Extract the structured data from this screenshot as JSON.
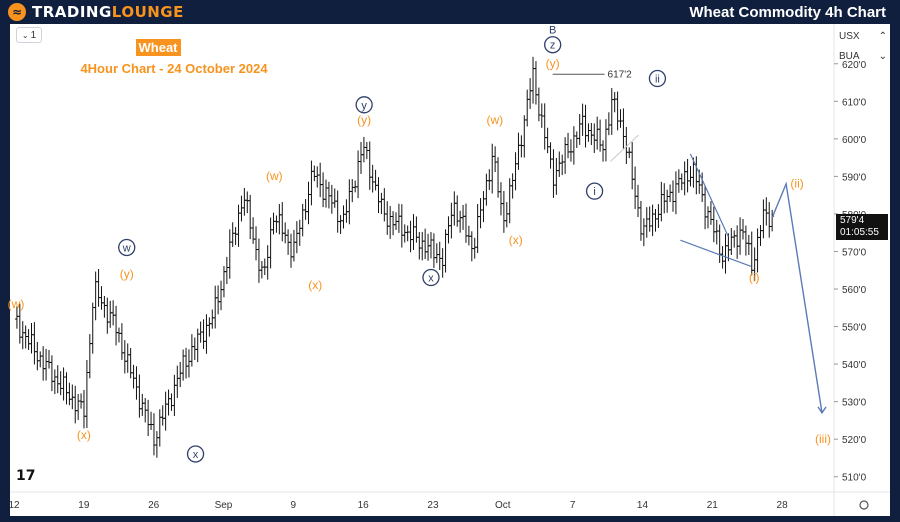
{
  "header": {
    "logo_prefix": "TRADING",
    "logo_suffix": "LOUNGE",
    "title": "Wheat Commodity 4h Chart"
  },
  "toolbar": {
    "interval": "1"
  },
  "chart_header": {
    "symbol": "Wheat",
    "subtitle": "4Hour Chart - 24 October 2024"
  },
  "right_panel": {
    "currency": "USX",
    "scale": "BUA",
    "last_price": "579'4",
    "countdown": "01:05:55"
  },
  "colors": {
    "orange": "#f7931e",
    "navy": "#2e3f6b",
    "background": "#0f1f3d",
    "projection": "#5b7ab8"
  },
  "chart_data": {
    "type": "candlestick",
    "title": "Wheat",
    "subtitle": "4Hour Chart - 24 October 2024",
    "y_axis": {
      "ticks": [
        "510'0",
        "520'0",
        "530'0",
        "540'0",
        "550'0",
        "560'0",
        "570'0",
        "580'0",
        "590'0",
        "600'0",
        "610'0",
        "620'0"
      ],
      "range": [
        507,
        621
      ]
    },
    "x_axis": {
      "tick_labels": [
        "12",
        "19",
        "26",
        "Sep",
        "9",
        "16",
        "23",
        "Oct",
        "7",
        "14",
        "21",
        "28"
      ],
      "tick_index": [
        0,
        7,
        14,
        21,
        28,
        35,
        42,
        49,
        56,
        63,
        70,
        77
      ]
    },
    "price_path_index": [
      0,
      3,
      7,
      8,
      10,
      14,
      17,
      20,
      23,
      25,
      26,
      28,
      30,
      33,
      35,
      37,
      40,
      43,
      44,
      46,
      48,
      49,
      50,
      52,
      54,
      57,
      59,
      60,
      61,
      63,
      65,
      68,
      71,
      73,
      74,
      75,
      76
    ],
    "price_path_value": [
      552,
      540,
      527,
      560,
      551,
      520,
      540,
      553,
      585,
      562,
      580,
      570,
      591,
      578,
      598,
      580,
      574,
      568,
      583,
      571,
      596,
      578,
      589,
      617,
      590,
      604,
      598,
      610,
      603,
      575,
      583,
      592,
      569,
      576,
      566,
      579,
      579
    ],
    "resistance_level": {
      "label": "617'2",
      "value": 617.2
    },
    "projection": {
      "from_index": 76,
      "to_index": 81,
      "from_value": 579,
      "to_value": 527
    },
    "wave_labels": [
      {
        "text": "(w)",
        "index": 0.2,
        "value": 555,
        "style": "orange"
      },
      {
        "text": "(x)",
        "index": 7,
        "value": 520,
        "style": "orange"
      },
      {
        "text": "(y)",
        "index": 11.3,
        "value": 563,
        "style": "orange"
      },
      {
        "text": "w",
        "index": 11.3,
        "value": 570,
        "style": "circle"
      },
      {
        "text": "x",
        "index": 18.2,
        "value": 515,
        "style": "circle"
      },
      {
        "text": "(w)",
        "index": 26.1,
        "value": 589,
        "style": "orange"
      },
      {
        "text": "(x)",
        "index": 30.2,
        "value": 560,
        "style": "orange"
      },
      {
        "text": "(y)",
        "index": 35.1,
        "value": 604,
        "style": "orange"
      },
      {
        "text": "y",
        "index": 35.1,
        "value": 608,
        "style": "circle"
      },
      {
        "text": "x",
        "index": 41.8,
        "value": 562,
        "style": "circle"
      },
      {
        "text": "(w)",
        "index": 48.2,
        "value": 604,
        "style": "orange"
      },
      {
        "text": "(x)",
        "index": 50.3,
        "value": 572,
        "style": "orange"
      },
      {
        "text": "(y)",
        "index": 54,
        "value": 619,
        "style": "orange"
      },
      {
        "text": "z",
        "index": 54,
        "value": 624,
        "style": "circle"
      },
      {
        "text": "B",
        "index": 54,
        "value": 628,
        "style": "plain"
      },
      {
        "text": "i",
        "index": 58.2,
        "value": 585,
        "style": "circle"
      },
      {
        "text": "ii",
        "index": 64.5,
        "value": 615,
        "style": "circle"
      },
      {
        "text": "(i)",
        "index": 74.2,
        "value": 562,
        "style": "orange"
      },
      {
        "text": "(ii)",
        "index": 78.5,
        "value": 587,
        "style": "orange"
      },
      {
        "text": "(iii)",
        "index": 81.1,
        "value": 519,
        "style": "orange"
      }
    ]
  }
}
